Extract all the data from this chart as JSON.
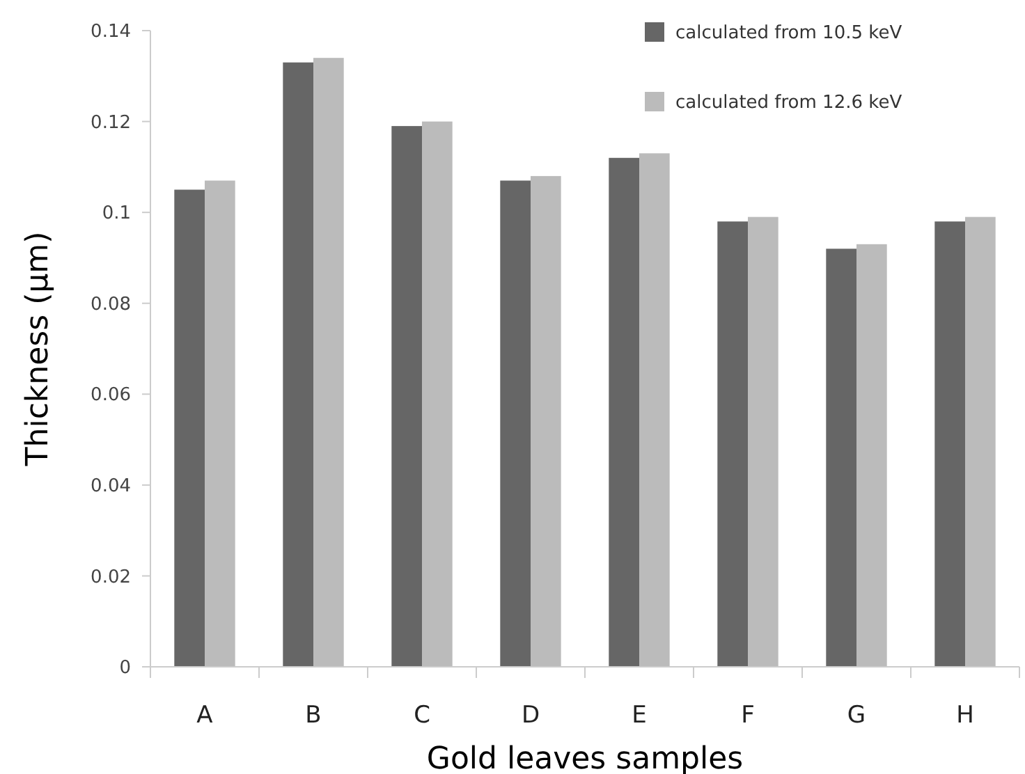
{
  "chart_data": {
    "type": "bar",
    "xlabel": "Gold leaves samples",
    "ylabel": "Thickness (µm)",
    "categories": [
      "A",
      "B",
      "C",
      "D",
      "E",
      "F",
      "G",
      "H"
    ],
    "series": [
      {
        "name": "calculated from 10.5 keV",
        "color": "#666666",
        "values": [
          0.105,
          0.133,
          0.119,
          0.107,
          0.112,
          0.098,
          0.092,
          0.098
        ]
      },
      {
        "name": "calculated from 12.6 keV",
        "color": "#bbbbbb",
        "values": [
          0.107,
          0.134,
          0.12,
          0.108,
          0.113,
          0.099,
          0.093,
          0.099
        ]
      }
    ],
    "ylim": [
      0,
      0.14
    ],
    "yticks": [
      0,
      0.02,
      0.04,
      0.06,
      0.08,
      {
        "value": 0.1,
        "label": "0.1"
      },
      0.12,
      0.14
    ],
    "grid": false,
    "legend": "top right"
  }
}
